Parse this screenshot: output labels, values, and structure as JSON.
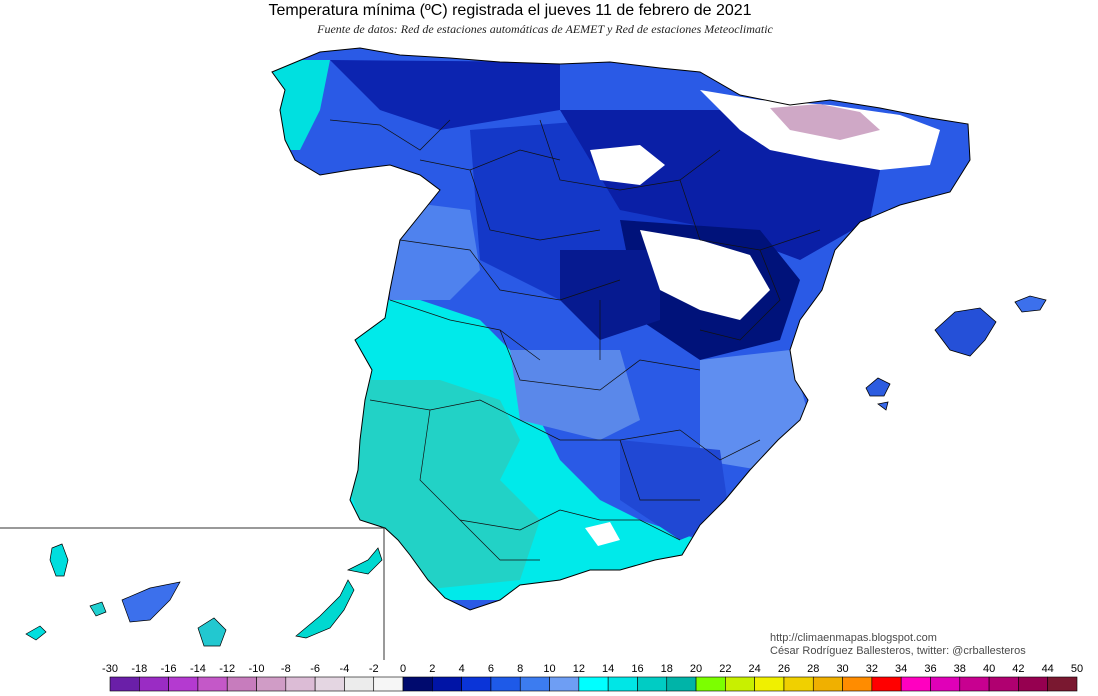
{
  "title": "Temperatura mínima (ºC) registrada el jueves 11 de febrero de 2021",
  "subtitle": "Fuente de datos: Red de estaciones automáticas de AEMET y Red de estaciones Meteoclimatic",
  "credits": {
    "url": "http://climaenmapas.blogspot.com",
    "author": "César Rodríguez Ballesteros, twitter: @crballesteros"
  },
  "legend": {
    "labels": [
      "-30",
      "-18",
      "-16",
      "-14",
      "-12",
      "-10",
      "-8",
      "-6",
      "-4",
      "-2",
      "0",
      "2",
      "4",
      "6",
      "8",
      "10",
      "12",
      "14",
      "16",
      "18",
      "20",
      "22",
      "24",
      "26",
      "28",
      "30",
      "32",
      "34",
      "36",
      "38",
      "40",
      "42",
      "44",
      "50"
    ],
    "colors": [
      "#6a1fa8",
      "#9a2cc4",
      "#b43ad0",
      "#c458c8",
      "#c77cbd",
      "#d09cc6",
      "#dcbcd6",
      "#e4d6e2",
      "#ececec",
      "#f6f6f6",
      "#000a6e",
      "#0014a6",
      "#0a34d8",
      "#1e5ae8",
      "#3c7cf0",
      "#6e9ef4",
      "#00ffff",
      "#00e6e6",
      "#00ccc4",
      "#00b4a8",
      "#7cff00",
      "#c8f000",
      "#f0f000",
      "#f0d000",
      "#f0b000",
      "#ff8c00",
      "#ff0000",
      "#ff00c0",
      "#e000b8",
      "#c80090",
      "#b00070",
      "#960050",
      "#7a1830"
    ]
  },
  "colors": {
    "deep_cold": "#001070",
    "very_cold": "#0018a8",
    "cold": "#1e4ee0",
    "cool": "#4a7ee8",
    "mild": "#00e8e8",
    "mild_warm": "#20d4c8",
    "snow": "#ffffff",
    "frost": "#c8a8c0"
  }
}
